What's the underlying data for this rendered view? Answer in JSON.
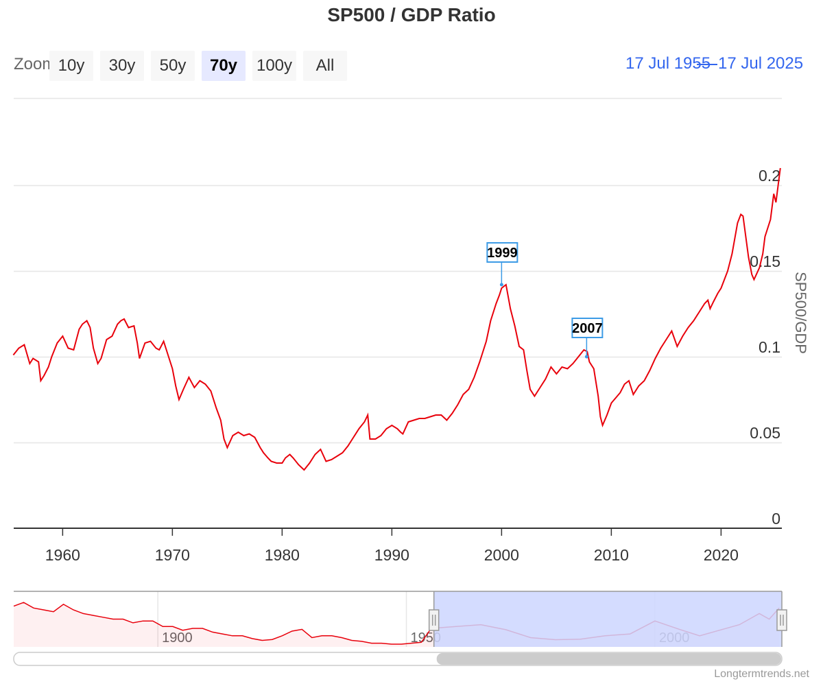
{
  "header": {
    "title": "SP500 / GDP Ratio"
  },
  "zoom": {
    "label": "Zoom",
    "buttons": [
      "10y",
      "30y",
      "50y",
      "70y",
      "100y",
      "All"
    ],
    "selected": "70y"
  },
  "range": {
    "from": "17 Jul 1955",
    "to": "17 Jul 2025"
  },
  "credits": "Longtermtrends.net",
  "colors": {
    "line": "#e8000b",
    "accent": "#3366ee",
    "navigator_fill": "#ccd6ff",
    "flag": "#3c9be6"
  },
  "chart_data": {
    "type": "line",
    "title": "SP500 / GDP Ratio",
    "xlabel": "",
    "ylabel": "SP500/GDP",
    "xlim": [
      1955.54,
      2025.54
    ],
    "ylim": [
      0,
      0.25
    ],
    "yticks": [
      0,
      0.05,
      0.1,
      0.15,
      0.2
    ],
    "ytick_labels": [
      "0",
      "0.05",
      "0.1",
      "0.15",
      "0.2"
    ],
    "xticks": [
      1960,
      1970,
      1980,
      1990,
      2000,
      2010,
      2020
    ],
    "xtick_labels": [
      "1960",
      "1970",
      "1980",
      "1990",
      "2000",
      "2010",
      "2020"
    ],
    "grid": true,
    "series": [
      {
        "name": "SP500/GDP",
        "x": [
          1955.5,
          1956.0,
          1956.5,
          1957.0,
          1957.3,
          1957.8,
          1958.0,
          1958.3,
          1958.7,
          1959.0,
          1959.5,
          1960.0,
          1960.5,
          1961.0,
          1961.5,
          1961.8,
          1962.2,
          1962.5,
          1962.8,
          1963.2,
          1963.5,
          1964.0,
          1964.5,
          1965.0,
          1965.3,
          1965.6,
          1966.0,
          1966.5,
          1966.8,
          1967.0,
          1967.5,
          1968.0,
          1968.5,
          1968.8,
          1969.2,
          1969.6,
          1970.0,
          1970.3,
          1970.6,
          1971.0,
          1971.5,
          1972.0,
          1972.5,
          1973.0,
          1973.5,
          1974.0,
          1974.4,
          1974.7,
          1975.0,
          1975.5,
          1976.0,
          1976.5,
          1977.0,
          1977.5,
          1978.0,
          1978.3,
          1978.7,
          1979.0,
          1979.5,
          1980.0,
          1980.3,
          1980.7,
          1981.0,
          1981.5,
          1982.0,
          1982.5,
          1983.0,
          1983.5,
          1984.0,
          1984.5,
          1985.0,
          1985.5,
          1986.0,
          1986.5,
          1987.0,
          1987.5,
          1987.8,
          1988.0,
          1988.5,
          1989.0,
          1989.5,
          1990.0,
          1990.5,
          1990.8,
          1991.0,
          1991.5,
          1992.0,
          1992.5,
          1993.0,
          1993.5,
          1994.0,
          1994.5,
          1995.0,
          1995.5,
          1996.0,
          1996.5,
          1997.0,
          1997.5,
          1998.0,
          1998.3,
          1998.6,
          1999.0,
          1999.5,
          1999.8,
          2000.0,
          2000.4,
          2000.8,
          2001.2,
          2001.6,
          2002.0,
          2002.3,
          2002.6,
          2003.0,
          2003.5,
          2004.0,
          2004.5,
          2005.0,
          2005.5,
          2006.0,
          2006.5,
          2007.0,
          2007.5,
          2007.8,
          2008.0,
          2008.4,
          2008.8,
          2009.0,
          2009.2,
          2009.6,
          2010.0,
          2010.4,
          2010.8,
          2011.2,
          2011.6,
          2012.0,
          2012.5,
          2013.0,
          2013.5,
          2014.0,
          2014.5,
          2015.0,
          2015.5,
          2016.0,
          2016.5,
          2017.0,
          2017.5,
          2018.0,
          2018.5,
          2018.8,
          2019.0,
          2019.3,
          2019.7,
          2020.0,
          2020.3,
          2020.6,
          2021.0,
          2021.5,
          2021.8,
          2022.0,
          2022.5,
          2022.8,
          2023.0,
          2023.5,
          2023.8,
          2024.0,
          2024.5,
          2024.8,
          2025.0,
          2025.4
        ],
        "values": [
          0.101,
          0.105,
          0.107,
          0.096,
          0.099,
          0.097,
          0.086,
          0.089,
          0.094,
          0.1,
          0.108,
          0.112,
          0.105,
          0.104,
          0.116,
          0.119,
          0.121,
          0.117,
          0.105,
          0.096,
          0.099,
          0.11,
          0.112,
          0.119,
          0.121,
          0.122,
          0.117,
          0.118,
          0.108,
          0.099,
          0.108,
          0.109,
          0.105,
          0.104,
          0.109,
          0.101,
          0.093,
          0.083,
          0.075,
          0.081,
          0.088,
          0.082,
          0.086,
          0.084,
          0.08,
          0.07,
          0.063,
          0.052,
          0.047,
          0.054,
          0.056,
          0.054,
          0.055,
          0.053,
          0.047,
          0.044,
          0.041,
          0.039,
          0.038,
          0.038,
          0.041,
          0.043,
          0.041,
          0.037,
          0.034,
          0.038,
          0.043,
          0.046,
          0.039,
          0.04,
          0.042,
          0.044,
          0.048,
          0.053,
          0.058,
          0.062,
          0.066,
          0.052,
          0.052,
          0.054,
          0.058,
          0.06,
          0.058,
          0.056,
          0.055,
          0.062,
          0.063,
          0.064,
          0.064,
          0.065,
          0.066,
          0.066,
          0.063,
          0.067,
          0.072,
          0.078,
          0.081,
          0.088,
          0.097,
          0.103,
          0.109,
          0.121,
          0.131,
          0.136,
          0.14,
          0.142,
          0.128,
          0.118,
          0.106,
          0.104,
          0.092,
          0.081,
          0.077,
          0.082,
          0.087,
          0.094,
          0.09,
          0.094,
          0.093,
          0.096,
          0.1,
          0.104,
          0.103,
          0.097,
          0.093,
          0.077,
          0.065,
          0.06,
          0.066,
          0.073,
          0.076,
          0.079,
          0.084,
          0.086,
          0.078,
          0.083,
          0.086,
          0.092,
          0.099,
          0.105,
          0.11,
          0.115,
          0.106,
          0.112,
          0.117,
          0.121,
          0.126,
          0.131,
          0.133,
          0.128,
          0.132,
          0.137,
          0.14,
          0.145,
          0.15,
          0.16,
          0.178,
          0.183,
          0.182,
          0.158,
          0.148,
          0.145,
          0.152,
          0.16,
          0.17,
          0.18,
          0.195,
          0.19,
          0.21
        ]
      }
    ],
    "flags": [
      {
        "label": "1999",
        "x": 2000.0,
        "y": 0.142
      },
      {
        "label": "2007",
        "x": 2007.75,
        "y": 0.1
      }
    ],
    "navigator": {
      "xlim": [
        1871,
        2025.54
      ],
      "ylim": [
        0,
        0.3
      ],
      "xticks": [
        1900,
        1950,
        2000
      ],
      "xtick_labels": [
        "1900",
        "1950",
        "2000"
      ],
      "selected_range": [
        1955.54,
        2025.54
      ],
      "x": [
        1871,
        1873,
        1875,
        1877,
        1879,
        1881,
        1883,
        1885,
        1887,
        1889,
        1891,
        1893,
        1895,
        1897,
        1899,
        1901,
        1903,
        1905,
        1907,
        1909,
        1911,
        1913,
        1915,
        1917,
        1919,
        1921,
        1923,
        1925,
        1927,
        1929,
        1931,
        1933,
        1935,
        1937,
        1939,
        1941,
        1943,
        1945,
        1947,
        1949,
        1951,
        1953,
        1955,
        1960,
        1965,
        1970,
        1975,
        1980,
        1985,
        1990,
        1995,
        2000,
        2005,
        2009,
        2013,
        2017,
        2021,
        2023,
        2025
      ],
      "values": [
        0.22,
        0.24,
        0.21,
        0.2,
        0.19,
        0.23,
        0.2,
        0.18,
        0.17,
        0.16,
        0.15,
        0.15,
        0.13,
        0.14,
        0.14,
        0.11,
        0.11,
        0.09,
        0.1,
        0.1,
        0.08,
        0.07,
        0.06,
        0.06,
        0.045,
        0.035,
        0.04,
        0.06,
        0.085,
        0.095,
        0.05,
        0.06,
        0.06,
        0.05,
        0.035,
        0.03,
        0.02,
        0.02,
        0.015,
        0.015,
        0.02,
        0.025,
        0.1,
        0.11,
        0.12,
        0.093,
        0.05,
        0.039,
        0.042,
        0.06,
        0.07,
        0.14,
        0.094,
        0.06,
        0.09,
        0.12,
        0.18,
        0.15,
        0.21
      ]
    }
  }
}
